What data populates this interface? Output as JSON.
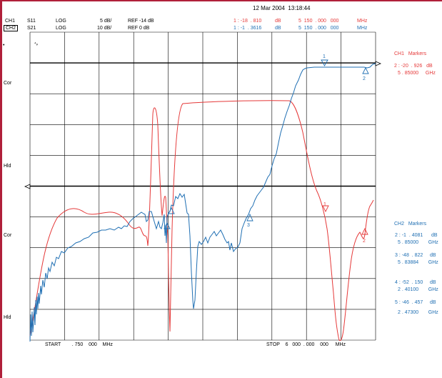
{
  "header": {
    "timestamp": "12 Mar 2004  13:18:44",
    "ch1": {
      "label": "CH1",
      "param": "S11",
      "fmt": "LOG",
      "scale": "5 dB/",
      "ref": "REF -14 dB"
    },
    "ch2": {
      "label": "CH2",
      "param": "S21",
      "fmt": "LOG",
      "scale": "10 dB/",
      "ref": "REF 0 dB"
    },
    "marker_readout_1": {
      "value": "1 : -18  . 810",
      "unit": "dB",
      "freq": "5  150  . 000   000",
      "funit": "MHz"
    },
    "marker_readout_2": {
      "value": "1 : -1  . 3616",
      "unit": "dB",
      "freq": "5  150  . 000   000",
      "funit": "MHz"
    }
  },
  "side_labels": {
    "cor1": "Cor",
    "hld1": "Hld",
    "cor2": "Cor",
    "hld2": "Hld"
  },
  "screen_labels": {
    "ap": "⁴ₚ",
    "dot": "•"
  },
  "ch1_markers": {
    "title": "CH1   Markers",
    "line1": "2 : -20  . 926   dB",
    "line2": "5 . 85000     GHz"
  },
  "ch2_markers": {
    "title": "CH2   Markers",
    "m2a": "2 : -1  . 4081      dB",
    "m2b": "5 . 85000       GHz",
    "m3a": "3 : -48  . 822     dB",
    "m3b": "5 . 83884       GHz",
    "m4a": "4 : -52  . 150     dB",
    "m4b": "2 . 40100       GHz",
    "m5a": "5 : -46  . 457     dB",
    "m5b": "2 . 47300       GHz"
  },
  "footer": {
    "start": "START        . 750    000    MHz",
    "stop": "STOP    6   000  . 000    000     MHz"
  },
  "marker_nums": {
    "ch2_1": "1",
    "ch2_2": "2",
    "ch2_3": "3",
    "ch1_1": "1",
    "ch1_2": "2"
  },
  "colors": {
    "ch1_trace": "#e53939",
    "ch2_trace": "#1f6fb3",
    "grid": "#000000",
    "frame": "#b0203a"
  }
}
